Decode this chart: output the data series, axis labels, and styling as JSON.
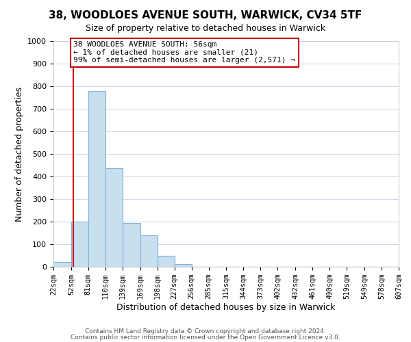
{
  "title": "38, WOODLOES AVENUE SOUTH, WARWICK, CV34 5TF",
  "subtitle": "Size of property relative to detached houses in Warwick",
  "xlabel": "Distribution of detached houses by size in Warwick",
  "ylabel": "Number of detached properties",
  "bin_edges": [
    22,
    52,
    81,
    110,
    139,
    169,
    198,
    227,
    256,
    285,
    315,
    344,
    373,
    402,
    432,
    461,
    490,
    519,
    549,
    578,
    607
  ],
  "bar_labels": [
    "22sqm",
    "52sqm",
    "81sqm",
    "110sqm",
    "139sqm",
    "169sqm",
    "198sqm",
    "227sqm",
    "256sqm",
    "285sqm",
    "315sqm",
    "344sqm",
    "373sqm",
    "402sqm",
    "432sqm",
    "461sqm",
    "490sqm",
    "519sqm",
    "549sqm",
    "578sqm",
    "607sqm"
  ],
  "bar_values": [
    20,
    200,
    780,
    435,
    195,
    140,
    50,
    12,
    0,
    0,
    0,
    0,
    0,
    0,
    0,
    0,
    0,
    0,
    0,
    0
  ],
  "bar_color": "#c8dff0",
  "bar_edge_color": "#7fb3d3",
  "property_line_x": 56,
  "property_line_color": "#cc0000",
  "xlim_min": 22,
  "xlim_max": 607,
  "ylim_min": 0,
  "ylim_max": 1000,
  "yticks": [
    0,
    100,
    200,
    300,
    400,
    500,
    600,
    700,
    800,
    900,
    1000
  ],
  "annotation_text": "38 WOODLOES AVENUE SOUTH: 56sqm\n← 1% of detached houses are smaller (21)\n99% of semi-detached houses are larger (2,571) →",
  "annotation_box_edge_color": "#cc0000",
  "footnote1": "Contains HM Land Registry data © Crown copyright and database right 2024.",
  "footnote2": "Contains public sector information licensed under the Open Government Licence v3.0."
}
